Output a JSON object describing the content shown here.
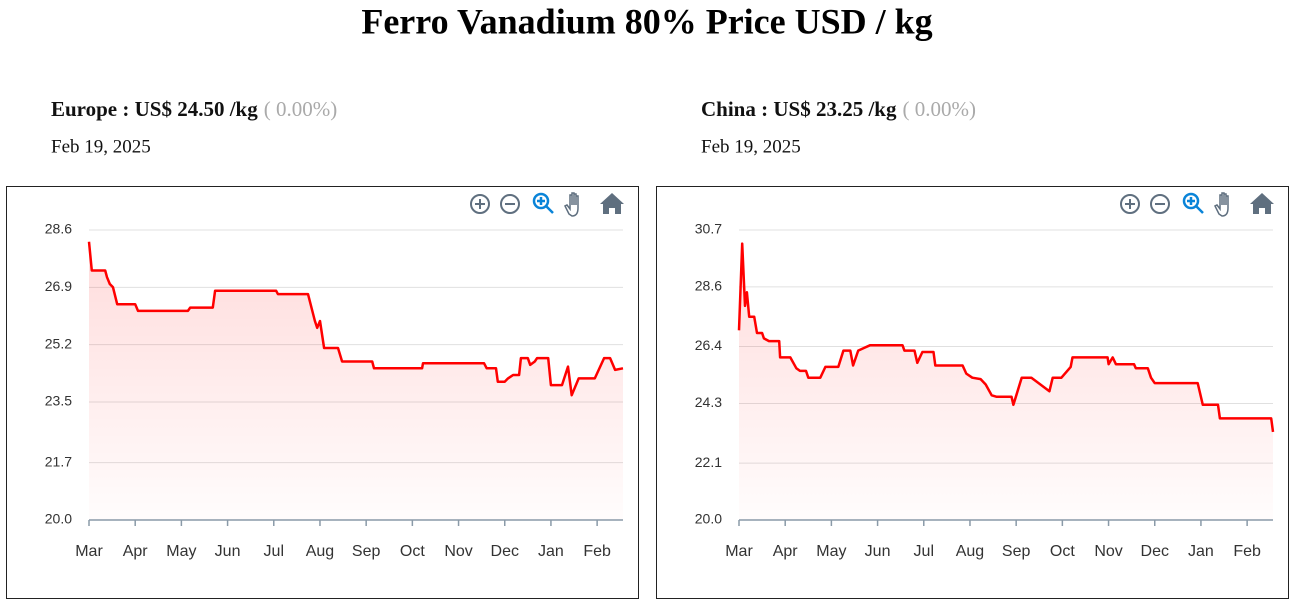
{
  "title": "Ferro Vanadium 80% Price USD / kg",
  "chart_data": [
    {
      "type": "line",
      "title": "Europe : US$ 24.50 /kg",
      "change": "( 0.00%)",
      "date": "Feb 19, 2025",
      "x": [
        0,
        0.06,
        0.35,
        0.39,
        0.45,
        0.52,
        0.61,
        1.0,
        1.06,
        2.14,
        2.19,
        2.68,
        2.73,
        4.05,
        4.09,
        4.74,
        4.89,
        4.94,
        5.0,
        5.09,
        5.39,
        5.48,
        6.13,
        6.17,
        7.21,
        7.23,
        8.55,
        8.61,
        8.81,
        8.85,
        9.0,
        9.07,
        9.18,
        9.31,
        9.35,
        9.5,
        9.55,
        9.65,
        9.7,
        9.94,
        10.0,
        10.24,
        10.37,
        10.45,
        10.6,
        10.95,
        11.15,
        11.28,
        11.39,
        11.56
      ],
      "series": [
        {
          "color": "#ff0000",
          "values": [
            28.25,
            27.4,
            27.4,
            27.2,
            27.0,
            26.9,
            26.4,
            26.4,
            26.2,
            26.2,
            26.3,
            26.3,
            26.8,
            26.8,
            26.7,
            26.7,
            25.9,
            25.7,
            25.9,
            25.1,
            25.1,
            24.7,
            24.7,
            24.5,
            24.5,
            24.65,
            24.65,
            24.5,
            24.5,
            24.1,
            24.1,
            24.2,
            24.3,
            24.3,
            24.8,
            24.8,
            24.6,
            24.7,
            24.8,
            24.8,
            24.0,
            24.0,
            24.55,
            23.7,
            24.2,
            24.2,
            24.8,
            24.8,
            24.45,
            24.5
          ]
        }
      ],
      "xlim": [
        0,
        11.56
      ],
      "xticks": [
        {
          "value": 0,
          "label": "Mar"
        },
        {
          "value": 1,
          "label": "Apr"
        },
        {
          "value": 2,
          "label": "May"
        },
        {
          "value": 3,
          "label": "Jun"
        },
        {
          "value": 4,
          "label": "Jul"
        },
        {
          "value": 5,
          "label": "Aug"
        },
        {
          "value": 6,
          "label": "Sep"
        },
        {
          "value": 7,
          "label": "Oct"
        },
        {
          "value": 8,
          "label": "Nov"
        },
        {
          "value": 9,
          "label": "Dec"
        },
        {
          "value": 10,
          "label": "Jan"
        },
        {
          "value": 11,
          "label": "Feb"
        }
      ],
      "ylim": [
        20,
        28.6
      ],
      "yticks": [
        {
          "value": 20,
          "label": "20.0"
        },
        21.7,
        23.5,
        25.2,
        26.9,
        28.6
      ],
      "grid": true
    },
    {
      "type": "line",
      "title": "China : US$ 23.25 /kg",
      "change": "( 0.00%)",
      "date": "Feb 19, 2025",
      "x": [
        0,
        0.07,
        0.13,
        0.17,
        0.22,
        0.33,
        0.39,
        0.5,
        0.54,
        0.65,
        0.87,
        0.89,
        1.11,
        1.24,
        1.32,
        1.45,
        1.5,
        1.76,
        1.87,
        2.15,
        2.26,
        2.41,
        2.47,
        2.58,
        2.71,
        2.84,
        3.54,
        3.58,
        3.8,
        3.86,
        3.97,
        4.21,
        4.25,
        4.84,
        4.92,
        5.05,
        5.23,
        5.34,
        5.47,
        5.57,
        5.9,
        5.94,
        6.12,
        6.33,
        6.72,
        6.79,
        6.98,
        7.18,
        7.22,
        7.98,
        8.0,
        8.09,
        8.16,
        8.55,
        8.59,
        8.85,
        8.92,
        9.0,
        9.93,
        10.04,
        10.37,
        10.41,
        11.52,
        11.56
      ],
      "series": [
        {
          "color": "#ff0000",
          "values": [
            27.0,
            30.2,
            27.9,
            28.4,
            27.5,
            27.5,
            26.9,
            26.9,
            26.7,
            26.6,
            26.6,
            26.0,
            26.0,
            25.6,
            25.5,
            25.5,
            25.25,
            25.25,
            25.65,
            25.65,
            26.25,
            26.25,
            25.7,
            26.25,
            26.35,
            26.45,
            26.45,
            26.25,
            26.25,
            25.8,
            26.2,
            26.2,
            25.7,
            25.7,
            25.4,
            25.25,
            25.2,
            25.0,
            24.6,
            24.55,
            24.55,
            24.25,
            25.25,
            25.25,
            24.75,
            25.25,
            25.25,
            25.65,
            26.0,
            26.0,
            25.75,
            26.0,
            25.75,
            25.75,
            25.6,
            25.6,
            25.25,
            25.05,
            25.05,
            24.25,
            24.25,
            23.75,
            23.75,
            23.25
          ]
        }
      ],
      "xlim": [
        0,
        11.56
      ],
      "xticks": [
        {
          "value": 0,
          "label": "Mar"
        },
        {
          "value": 1,
          "label": "Apr"
        },
        {
          "value": 2,
          "label": "May"
        },
        {
          "value": 3,
          "label": "Jun"
        },
        {
          "value": 4,
          "label": "Jul"
        },
        {
          "value": 5,
          "label": "Aug"
        },
        {
          "value": 6,
          "label": "Sep"
        },
        {
          "value": 7,
          "label": "Oct"
        },
        {
          "value": 8,
          "label": "Nov"
        },
        {
          "value": 9,
          "label": "Dec"
        },
        {
          "value": 10,
          "label": "Jan"
        },
        {
          "value": 11,
          "label": "Feb"
        }
      ],
      "ylim": [
        20,
        30.7
      ],
      "yticks": [
        {
          "value": 20,
          "label": "20.0"
        },
        22.1,
        24.3,
        26.4,
        28.6,
        30.7
      ],
      "grid": true
    }
  ]
}
